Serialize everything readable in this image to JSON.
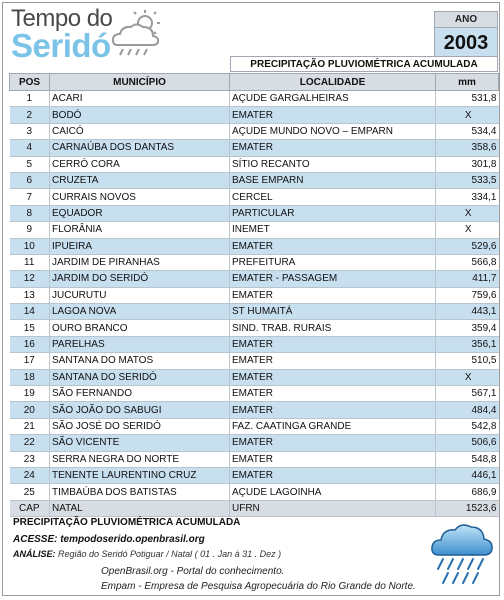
{
  "logo": {
    "line1": "Tempo do",
    "line2": "Seridó",
    "icon": "weather-sun-cloud-rain-icon"
  },
  "year": {
    "label": "ANO",
    "value": "2003"
  },
  "subtitle": "PRECIPITAÇÃO PLUVIOMÉTRICA ACUMULADA",
  "table": {
    "headers": {
      "pos": "POS",
      "municipio": "MUNICÍPIO",
      "localidade": "LOCALIDADE",
      "mm": "mm"
    },
    "rows": [
      {
        "pos": "1",
        "municipio": "ACARI",
        "localidade": "AÇUDE GARGALHEIRAS",
        "mm": "531,8"
      },
      {
        "pos": "2",
        "municipio": "BODÓ",
        "localidade": "EMATER",
        "mm": "X"
      },
      {
        "pos": "3",
        "municipio": "CAICÓ",
        "localidade": "AÇUDE MUNDO NOVO – EMPARN",
        "mm": "534,4"
      },
      {
        "pos": "4",
        "municipio": "CARNAÚBA DOS DANTAS",
        "localidade": "EMATER",
        "mm": "358,6"
      },
      {
        "pos": "5",
        "municipio": "CERRÓ CORA",
        "localidade": "SÍTIO RECANTO",
        "mm": "301,8"
      },
      {
        "pos": "6",
        "municipio": "CRUZETA",
        "localidade": "BASE EMPARN",
        "mm": "533,5"
      },
      {
        "pos": "7",
        "municipio": "CURRAIS NOVOS",
        "localidade": "CERCEL",
        "mm": "334,1"
      },
      {
        "pos": "8",
        "municipio": "EQUADOR",
        "localidade": "PARTICULAR",
        "mm": "X"
      },
      {
        "pos": "9",
        "municipio": "FLORÂNIA",
        "localidade": "INEMET",
        "mm": "X"
      },
      {
        "pos": "10",
        "municipio": "IPUEIRA",
        "localidade": "EMATER",
        "mm": "529,6"
      },
      {
        "pos": "11",
        "municipio": "JARDIM DE PIRANHAS",
        "localidade": "PREFEITURA",
        "mm": "566,8"
      },
      {
        "pos": "12",
        "municipio": "JARDIM DO SERIDÓ",
        "localidade": "EMATER - PASSAGEM",
        "mm": "411,7"
      },
      {
        "pos": "13",
        "municipio": "JUCURUTU",
        "localidade": "EMATER",
        "mm": "759,6"
      },
      {
        "pos": "14",
        "municipio": "LAGOA NOVA",
        "localidade": "ST HUMAITÁ",
        "mm": "443,1"
      },
      {
        "pos": "15",
        "municipio": "OURO BRANCO",
        "localidade": "SIND. TRAB. RURAIS",
        "mm": "359,4"
      },
      {
        "pos": "16",
        "municipio": "PARELHAS",
        "localidade": "EMATER",
        "mm": "356,1"
      },
      {
        "pos": "17",
        "municipio": "SANTANA DO MATOS",
        "localidade": "EMATER",
        "mm": "510,5"
      },
      {
        "pos": "18",
        "municipio": "SANTANA DO SERIDÓ",
        "localidade": "EMATER",
        "mm": "X"
      },
      {
        "pos": "19",
        "municipio": "SÃO FERNANDO",
        "localidade": "EMATER",
        "mm": "567,1"
      },
      {
        "pos": "20",
        "municipio": "SÃO JOÃO DO SABUGI",
        "localidade": "EMATER",
        "mm": "484,4"
      },
      {
        "pos": "21",
        "municipio": "SÃO JOSÉ DO SERIDÓ",
        "localidade": "FAZ. CAATINGA GRANDE",
        "mm": "542,8"
      },
      {
        "pos": "22",
        "municipio": "SÃO VICENTE",
        "localidade": "EMATER",
        "mm": "506,6"
      },
      {
        "pos": "23",
        "municipio": "SERRA NEGRA DO NORTE",
        "localidade": "EMATER",
        "mm": "548,8"
      },
      {
        "pos": "24",
        "municipio": "TENENTE LAURENTINO CRUZ",
        "localidade": "EMATER",
        "mm": "446,1"
      },
      {
        "pos": "25",
        "municipio": "TIMBAÚBA DOS BATISTAS",
        "localidade": "AÇUDE LAGOINHA",
        "mm": "686,9"
      }
    ],
    "capital": {
      "pos": "CAP",
      "municipio": "NATAL",
      "localidade": "UFRN",
      "mm": "1523,6"
    }
  },
  "footer": {
    "title": "PRECIPITAÇÃO PLUVIOMÉTRICA ACUMULADA",
    "access": "ACESSE: tempodoserido.openbrasil.org",
    "analise_label": "ANÁLISE:",
    "analise_text": " Região do Seridó Potiguar / Natal ( 01 . Jan à 31 . Dez )",
    "portal": "OpenBrasil.org - Portal do conhecimento.",
    "empresa": "Empam - Empresa de Pesquisa Agropecuária do Rio Grande do Norte.",
    "icon": "rain-cloud-icon"
  },
  "colors": {
    "header_bg": "#d7dde3",
    "alt_row_bg": "#c8dff0",
    "logo_blue": "#7cc3e8"
  }
}
